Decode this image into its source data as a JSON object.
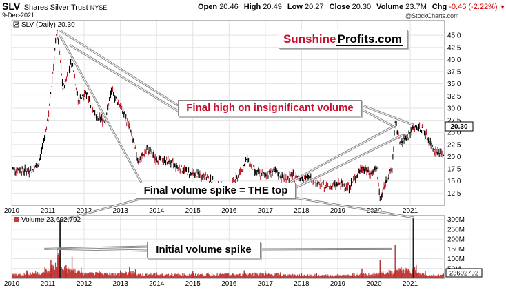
{
  "header": {
    "symbol": "SLV",
    "name": "iShares Silver Trust",
    "exchange": "NYSE",
    "date": "9-Dec-2021",
    "open_label": "Open",
    "open": "20.46",
    "high_label": "High",
    "high": "20.49",
    "low_label": "Low",
    "low": "20.27",
    "close_label": "Close",
    "close": "20.30",
    "volume_label": "Volume",
    "volume": "23.7M",
    "chg_label": "Chg",
    "chg": "-0.46 (-2.22%)",
    "chg_icon": "down-triangle-icon",
    "watermark": "@StockCharts.com",
    "pct_down_color": "#cc0000"
  },
  "brand": {
    "part1": "Sunshine",
    "part2": "Profits.com",
    "color": "#c8102e"
  },
  "chart_data": [
    {
      "type": "line",
      "legend": "SLV (Daily) 20.30",
      "last_value": "20.30",
      "x": [
        "2010-01",
        "2010-07",
        "2010-10",
        "2011-01",
        "2011-04",
        "2011-06",
        "2011-09",
        "2011-11",
        "2012-02",
        "2012-05",
        "2012-08",
        "2012-10",
        "2013-01",
        "2013-04",
        "2013-07",
        "2013-10",
        "2014-01",
        "2014-05",
        "2014-09",
        "2015-01",
        "2015-05",
        "2015-09",
        "2016-01",
        "2016-04",
        "2016-07",
        "2016-10",
        "2017-01",
        "2017-04",
        "2017-07",
        "2017-10",
        "2018-01",
        "2018-05",
        "2018-09",
        "2019-01",
        "2019-05",
        "2019-09",
        "2019-12",
        "2020-02",
        "2020-03",
        "2020-05",
        "2020-07",
        "2020-08",
        "2020-10",
        "2021-01",
        "2021-02",
        "2021-05",
        "2021-07",
        "2021-09",
        "2021-12"
      ],
      "y": [
        17.5,
        17.0,
        18.5,
        27.5,
        46.0,
        34.0,
        40.0,
        31.5,
        33.0,
        28.0,
        27.5,
        33.5,
        30.5,
        26.0,
        19.0,
        21.5,
        19.5,
        19.0,
        17.5,
        16.5,
        16.0,
        14.0,
        13.5,
        16.0,
        19.5,
        16.5,
        16.3,
        17.0,
        15.6,
        16.0,
        15.8,
        15.5,
        13.6,
        14.3,
        13.9,
        17.8,
        16.5,
        17.5,
        11.0,
        15.0,
        17.5,
        27.0,
        22.5,
        25.0,
        26.0,
        26.0,
        23.5,
        21.5,
        20.3
      ],
      "ylim": [
        10.0,
        48.0
      ],
      "y_ticks": [
        "45.0",
        "42.5",
        "40.0",
        "37.5",
        "35.0",
        "32.5",
        "30.0",
        "27.5",
        "25.0",
        "22.5",
        "20.0",
        "17.5",
        "15.0",
        "12.5"
      ],
      "x_ticks": [
        "2010",
        "2011",
        "2012",
        "2013",
        "2014",
        "2015",
        "2016",
        "2017",
        "2018",
        "2019",
        "2020",
        "2021"
      ],
      "annotations": [
        {
          "text": "Final high on insignificant volume"
        },
        {
          "text": "Final volume spike = THE top"
        }
      ]
    },
    {
      "type": "bar",
      "legend": "Volume 23,692,792",
      "last_value": "23692792",
      "x": [
        "2010-01",
        "2010-06",
        "2010-12",
        "2011-02",
        "2011-04",
        "2011-05",
        "2011-07",
        "2011-09",
        "2011-12",
        "2012-06",
        "2013-01",
        "2013-04",
        "2013-06",
        "2014-01",
        "2014-06",
        "2015-01",
        "2015-06",
        "2015-12",
        "2016-06",
        "2017-01",
        "2017-06",
        "2018-01",
        "2018-06",
        "2019-01",
        "2019-06",
        "2019-09",
        "2020-01",
        "2020-03",
        "2020-06",
        "2020-08",
        "2020-10",
        "2021-02",
        "2021-03",
        "2021-06",
        "2021-12"
      ],
      "y": [
        30,
        40,
        60,
        95,
        150,
        295,
        70,
        110,
        55,
        35,
        40,
        60,
        45,
        30,
        28,
        35,
        30,
        28,
        40,
        35,
        30,
        25,
        25,
        22,
        28,
        50,
        30,
        95,
        45,
        170,
        60,
        310,
        70,
        35,
        24
      ],
      "ylim": [
        0,
        320
      ],
      "y_ticks": [
        "300M",
        "250M",
        "200M",
        "150M",
        "100M",
        "50M"
      ],
      "x_ticks": [
        "2010",
        "2011",
        "2012",
        "2013",
        "2014",
        "2015",
        "2016",
        "2017",
        "2018",
        "2019",
        "2020",
        "2021"
      ],
      "unit": "M",
      "annotations": [
        {
          "text": "Initial volume spike"
        }
      ]
    }
  ]
}
